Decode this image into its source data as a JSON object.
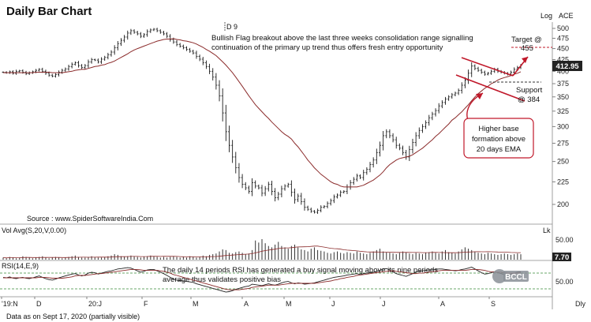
{
  "chart_data": {
    "type": "bar",
    "title": "Daily Bar Chart",
    "scale_label": "Log",
    "ticker": "ACE",
    "source": "Source : www.SpiderSoftwareIndia.Com",
    "footer_note": "Data as on Sept 17, 2020 (partially visible)",
    "last_price_badge": "412.95",
    "x_period_labels": [
      "'19:N",
      "D",
      "20:J",
      "F",
      "M",
      "A",
      "M",
      "J",
      "J",
      "A",
      "S",
      "Dly"
    ],
    "price_ticks": [
      200,
      225,
      250,
      275,
      300,
      325,
      350,
      375,
      400,
      425,
      450,
      475,
      500
    ],
    "ylim": [
      180,
      510
    ],
    "annotations": {
      "d9_marker": "D 9",
      "bullish_flag_line1": "Bullish Flag  breakout above the last three weeks consolidation range signalling",
      "bullish_flag_line2": "continuation of the primary up trend thus offers fresh entry opportunity",
      "target_line1": "Target @",
      "target_line2": "455",
      "support_line1": "Support",
      "support_line2": "@ 384",
      "higher_base_line1": "Higher base",
      "higher_base_line2": "formation above",
      "higher_base_line3": "20 days EMA",
      "target_value": 455,
      "support_value": 384
    },
    "series": [
      {
        "name": "Price",
        "values": [
          398,
          397,
          399,
          396,
          400,
          401,
          398,
          395,
          397,
          399,
          402,
          404,
          400,
          396,
          392,
          390,
          393,
          398,
          402,
          405,
          410,
          415,
          418,
          412,
          408,
          412,
          420,
          425,
          424,
          420,
          426,
          430,
          436,
          442,
          452,
          462,
          470,
          478,
          488,
          494,
          490,
          486,
          480,
          484,
          492,
          496,
          498,
          494,
          490,
          486,
          480,
          472,
          466,
          460,
          456,
          452,
          448,
          444,
          440,
          432,
          426,
          418,
          410,
          400,
          388,
          372,
          352,
          322,
          292,
          272,
          256,
          242,
          230,
          222,
          218,
          214,
          224,
          220,
          218,
          212,
          217,
          222,
          214,
          207,
          211,
          217,
          220,
          222,
          213,
          205,
          209,
          203,
          197,
          195,
          193,
          192,
          194,
          197,
          198,
          201,
          204,
          208,
          210,
          213,
          214,
          219,
          224,
          228,
          232,
          230,
          236,
          240,
          246,
          252,
          262,
          272,
          286,
          292,
          286,
          280,
          272,
          268,
          262,
          256,
          266,
          276,
          286,
          294,
          300,
          306,
          314,
          320,
          326,
          334,
          340,
          346,
          350,
          354,
          357,
          362,
          372,
          382,
          396,
          411,
          406,
          402,
          398,
          394,
          396,
          400,
          404,
          400,
          398,
          396,
          394,
          398,
          404,
          408,
          412
        ]
      },
      {
        "name": "20 days EMA",
        "values": [
          397,
          397,
          397,
          397,
          397,
          397,
          397,
          397,
          397,
          397,
          398,
          398,
          398,
          398,
          398,
          397,
          397,
          397,
          397,
          398,
          399,
          400,
          402,
          403,
          404,
          404,
          406,
          408,
          410,
          411,
          413,
          414,
          417,
          419,
          422,
          426,
          430,
          434,
          438,
          443,
          447,
          450,
          453,
          456,
          459,
          462,
          465,
          468,
          470,
          472,
          473,
          473,
          474,
          472,
          471,
          469,
          468,
          466,
          464,
          461,
          457,
          453,
          448,
          444,
          439,
          434,
          427,
          420,
          413,
          405,
          397,
          388,
          379,
          370,
          361,
          352,
          344,
          336,
          330,
          324,
          318,
          313,
          307,
          302,
          297,
          292,
          288,
          285,
          281,
          275,
          270,
          264,
          258,
          252,
          247,
          242,
          238,
          234,
          231,
          228,
          225,
          223,
          222,
          220,
          219,
          219,
          219,
          219,
          219,
          220,
          221,
          223,
          225,
          227,
          230,
          233,
          237,
          242,
          246,
          249,
          252,
          254,
          255,
          256,
          257,
          259,
          262,
          265,
          268,
          272,
          276,
          280,
          285,
          289,
          294,
          299,
          304,
          310,
          314,
          319,
          324,
          330,
          336,
          343,
          350,
          356,
          361,
          366,
          370,
          375,
          378,
          382,
          385,
          387,
          389,
          391,
          394,
          396,
          399
        ]
      }
    ],
    "volume": {
      "label": "Vol  Avg(S,20,V,0.00)",
      "unit_label": "Lk",
      "tick_value": "50.00",
      "last_value": "7.70",
      "values": [
        3,
        2,
        4,
        3,
        2,
        3,
        5,
        4,
        3,
        2,
        3,
        4,
        5,
        3,
        2,
        3,
        4,
        3,
        2,
        3,
        4,
        5,
        6,
        4,
        3,
        3,
        4,
        5,
        4,
        3,
        3,
        4,
        5,
        6,
        8,
        7,
        5,
        4,
        5,
        6,
        5,
        4,
        3,
        4,
        5,
        6,
        5,
        4,
        3,
        4,
        3,
        4,
        5,
        4,
        3,
        4,
        3,
        5,
        4,
        3,
        4,
        6,
        5,
        7,
        8,
        9,
        12,
        15,
        14,
        10,
        9,
        11,
        12,
        10,
        8,
        9,
        14,
        28,
        25,
        30,
        24,
        20,
        18,
        22,
        26,
        20,
        18,
        16,
        20,
        22,
        18,
        15,
        14,
        12,
        16,
        18,
        14,
        13,
        12,
        10,
        9,
        11,
        12,
        10,
        9,
        11,
        10,
        9,
        12,
        10,
        9,
        8,
        10,
        12,
        14,
        16,
        12,
        11,
        10,
        9,
        8,
        10,
        12,
        11,
        9,
        8,
        10,
        9,
        8,
        10,
        11,
        12,
        10,
        9,
        12,
        14,
        11,
        10,
        9,
        12,
        15,
        18,
        16,
        14,
        12,
        10,
        9,
        8,
        10,
        9,
        8,
        7,
        8,
        9,
        8,
        7,
        8,
        9,
        8
      ]
    },
    "rsi": {
      "label": "RSI(14,E,9)",
      "tick_value": "50.00",
      "note_line1": "The daily 14 periods RSI has generated a buy signal moving above its nine periods",
      "note_line2": "average thus validates positive bias",
      "values": [
        52,
        51,
        53,
        50,
        49,
        51,
        52,
        50,
        49,
        51,
        53,
        55,
        52,
        49,
        47,
        46,
        48,
        51,
        53,
        55,
        57,
        59,
        60,
        57,
        55,
        57,
        61,
        63,
        62,
        59,
        61,
        63,
        65,
        66,
        68,
        70,
        71,
        72,
        73,
        72,
        69,
        66,
        63,
        65,
        68,
        69,
        69,
        66,
        63,
        60,
        56,
        52,
        48,
        46,
        45,
        44,
        43,
        42,
        41,
        38,
        36,
        34,
        32,
        30,
        28,
        26,
        24,
        22,
        20,
        21,
        23,
        26,
        28,
        30,
        32,
        33,
        37,
        36,
        35,
        34,
        36,
        38,
        36,
        35,
        37,
        40,
        42,
        43,
        40,
        38,
        40,
        39,
        37,
        38,
        39,
        40,
        42,
        44,
        46,
        48,
        50,
        52,
        53,
        54,
        55,
        57,
        58,
        59,
        60,
        58,
        60,
        61,
        62,
        63,
        65,
        67,
        70,
        71,
        68,
        64,
        60,
        58,
        56,
        54,
        57,
        60,
        63,
        65,
        66,
        67,
        68,
        68,
        69,
        70,
        70,
        69,
        68,
        67,
        66,
        67,
        69,
        70,
        72,
        74,
        70,
        66,
        62,
        59,
        60,
        62,
        64,
        62,
        60,
        58,
        57,
        59,
        61,
        63,
        64
      ],
      "average": [
        51,
        51,
        51,
        51,
        51,
        51,
        51,
        51,
        51,
        51,
        51,
        52,
        52,
        52,
        51,
        50,
        50,
        50,
        50,
        51,
        52,
        53,
        55,
        56,
        56,
        56,
        57,
        58,
        59,
        60,
        60,
        61,
        62,
        63,
        64,
        65,
        66,
        67,
        68,
        69,
        69,
        69,
        68,
        67,
        67,
        67,
        67,
        67,
        66,
        65,
        63,
        61,
        58,
        56,
        54,
        52,
        50,
        48,
        46,
        44,
        42,
        40,
        38,
        36,
        34,
        32,
        30,
        28,
        26,
        25,
        25,
        25,
        25,
        26,
        27,
        28,
        30,
        31,
        32,
        33,
        34,
        35,
        35,
        35,
        35,
        36,
        37,
        38,
        39,
        39,
        39,
        39,
        39,
        39,
        39,
        39,
        40,
        41,
        42,
        43,
        44,
        46,
        47,
        49,
        50,
        52,
        53,
        54,
        56,
        57,
        58,
        59,
        60,
        61,
        62,
        63,
        64,
        65,
        66,
        66,
        65,
        64,
        63,
        62,
        61,
        60,
        60,
        61,
        61,
        62,
        63,
        64,
        65,
        66,
        67,
        67,
        67,
        67,
        67,
        67,
        67,
        67,
        68,
        69,
        69,
        69,
        68,
        67,
        65,
        64,
        64,
        63,
        63,
        62,
        61,
        61,
        61,
        61,
        62
      ]
    }
  }
}
